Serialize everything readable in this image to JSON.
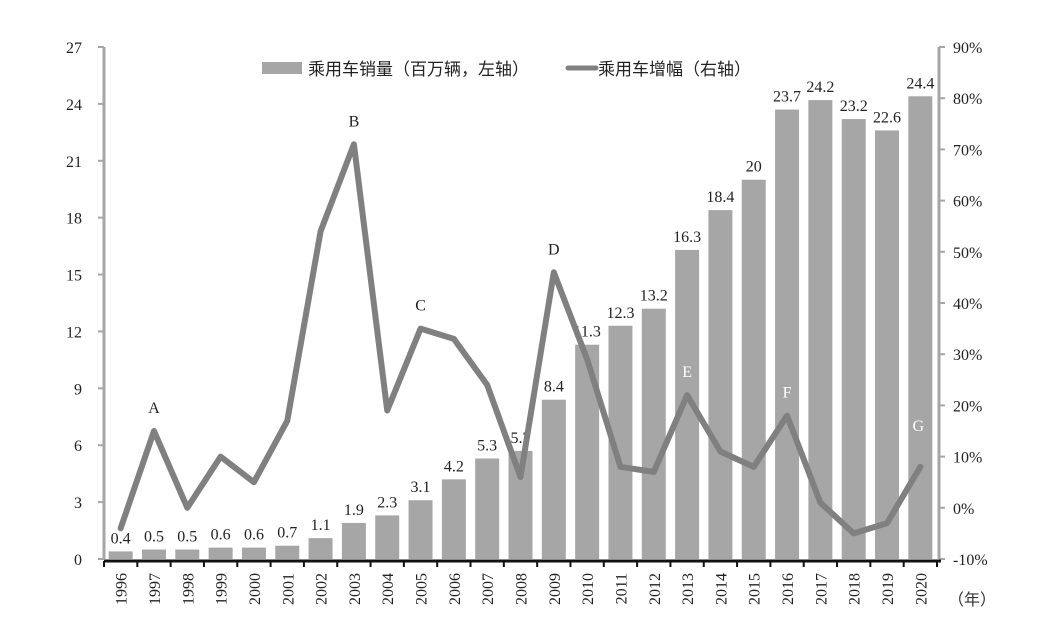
{
  "chart_data": {
    "type": "bar+line",
    "title": "",
    "xlabel": "（年）",
    "categories": [
      "1996",
      "1997",
      "1998",
      "1999",
      "2000",
      "2001",
      "2002",
      "2003",
      "2004",
      "2005",
      "2006",
      "2007",
      "2008",
      "2009",
      "2010",
      "2011",
      "2012",
      "2013",
      "2014",
      "2015",
      "2016",
      "2017",
      "2018",
      "2019",
      "2020"
    ],
    "series": [
      {
        "name": "乘用车销量（百万辆，左轴）",
        "type": "bar",
        "axis": "left",
        "values": [
          0.4,
          0.5,
          0.5,
          0.6,
          0.6,
          0.7,
          1.1,
          1.9,
          2.3,
          3.1,
          4.2,
          5.3,
          5.7,
          8.4,
          11.3,
          12.3,
          13.2,
          16.3,
          18.4,
          20,
          23.7,
          24.2,
          23.2,
          22.6,
          24.4
        ],
        "labels": [
          "0.4",
          "0.5",
          "0.5",
          "0.6",
          "0.6",
          "0.7",
          "1.1",
          "1.9",
          "2.3",
          "3.1",
          "4.2",
          "5.3",
          "5.7",
          "8.4",
          "11.3",
          "12.3",
          "13.2",
          "16.3",
          "18.4",
          "20",
          "23.7",
          "24.2",
          "23.2",
          "22.6",
          "24.4"
        ],
        "color": "#a6a6a6"
      },
      {
        "name": "乘用车增幅（右轴）",
        "type": "line",
        "axis": "right",
        "values": [
          -4,
          15,
          0,
          10,
          5,
          17,
          54,
          71,
          19,
          35,
          33,
          24,
          6,
          46,
          29,
          8,
          7,
          22,
          11,
          8,
          18,
          1,
          -5,
          -3,
          8
        ],
        "color": "#808080"
      }
    ],
    "left_axis": {
      "range": [
        0,
        27
      ],
      "ticks": [
        "0",
        "3",
        "6",
        "9",
        "12",
        "15",
        "18",
        "21",
        "24",
        "27"
      ]
    },
    "right_axis": {
      "range": [
        -10,
        90
      ],
      "unit": "%",
      "ticks": [
        "-10%",
        "0%",
        "10%",
        "20%",
        "30%",
        "40%",
        "50%",
        "60%",
        "70%",
        "80%",
        "90%"
      ]
    },
    "annotations": [
      {
        "text": "A",
        "category": "1997",
        "color": "#222222"
      },
      {
        "text": "B",
        "category": "2003",
        "color": "#222222"
      },
      {
        "text": "C",
        "category": "2005",
        "color": "#222222"
      },
      {
        "text": "D",
        "category": "2009",
        "color": "#222222"
      },
      {
        "text": "E",
        "category": "2013",
        "color": "#ffffff"
      },
      {
        "text": "F",
        "category": "2016",
        "color": "#ffffff"
      },
      {
        "text": "G",
        "category": "2020",
        "color": "#ffffff"
      }
    ],
    "grid": false,
    "legend": "top-center"
  }
}
